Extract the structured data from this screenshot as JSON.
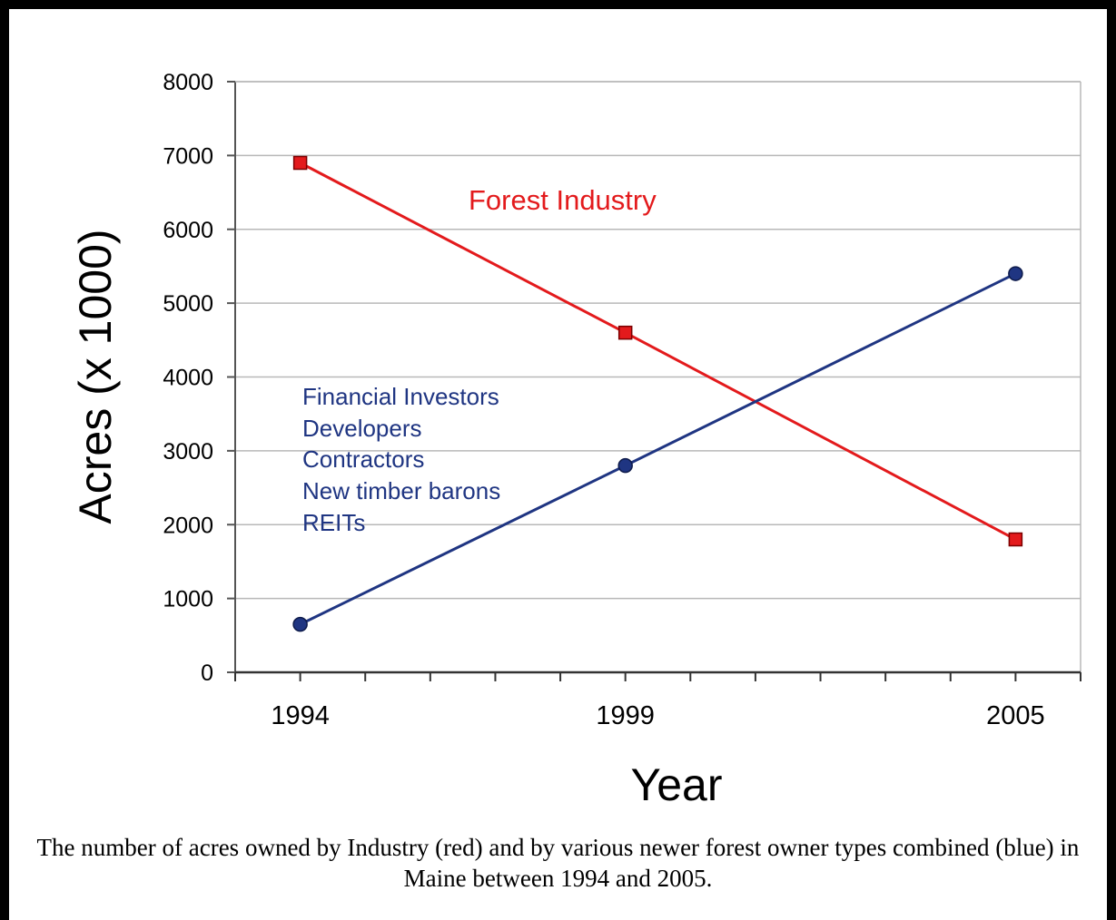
{
  "chart_data": {
    "type": "line",
    "categories": [
      "1994",
      "1999",
      "2005"
    ],
    "x": [
      1994,
      1999,
      2005
    ],
    "xlim": [
      1993,
      2006
    ],
    "xlabel": "Year",
    "ylabel": "Acres (x 1000)",
    "ylim": [
      0,
      8000
    ],
    "yticks": [
      0,
      1000,
      2000,
      3000,
      4000,
      5000,
      6000,
      7000,
      8000
    ],
    "grid": true,
    "series": [
      {
        "values": [
          6900,
          4600,
          1800
        ],
        "color": "#e31a1c",
        "marker": "square"
      },
      {
        "values": [
          650,
          2800,
          5400
        ],
        "color": "#1f3582",
        "marker": "circle"
      }
    ],
    "annotations": {
      "forest_industry": "Forest Industry",
      "owner_types": [
        "Financial Investors",
        "Developers",
        "Contractors",
        "New timber barons",
        "REITs"
      ]
    },
    "colors": {
      "red": "#e31a1c",
      "blue": "#1f3582",
      "grid": "#b8b8b8",
      "axis": "#555555"
    }
  },
  "caption": "The number of acres owned by Industry (red) and by various newer forest owner types combined (blue) in Maine between 1994 and 2005."
}
